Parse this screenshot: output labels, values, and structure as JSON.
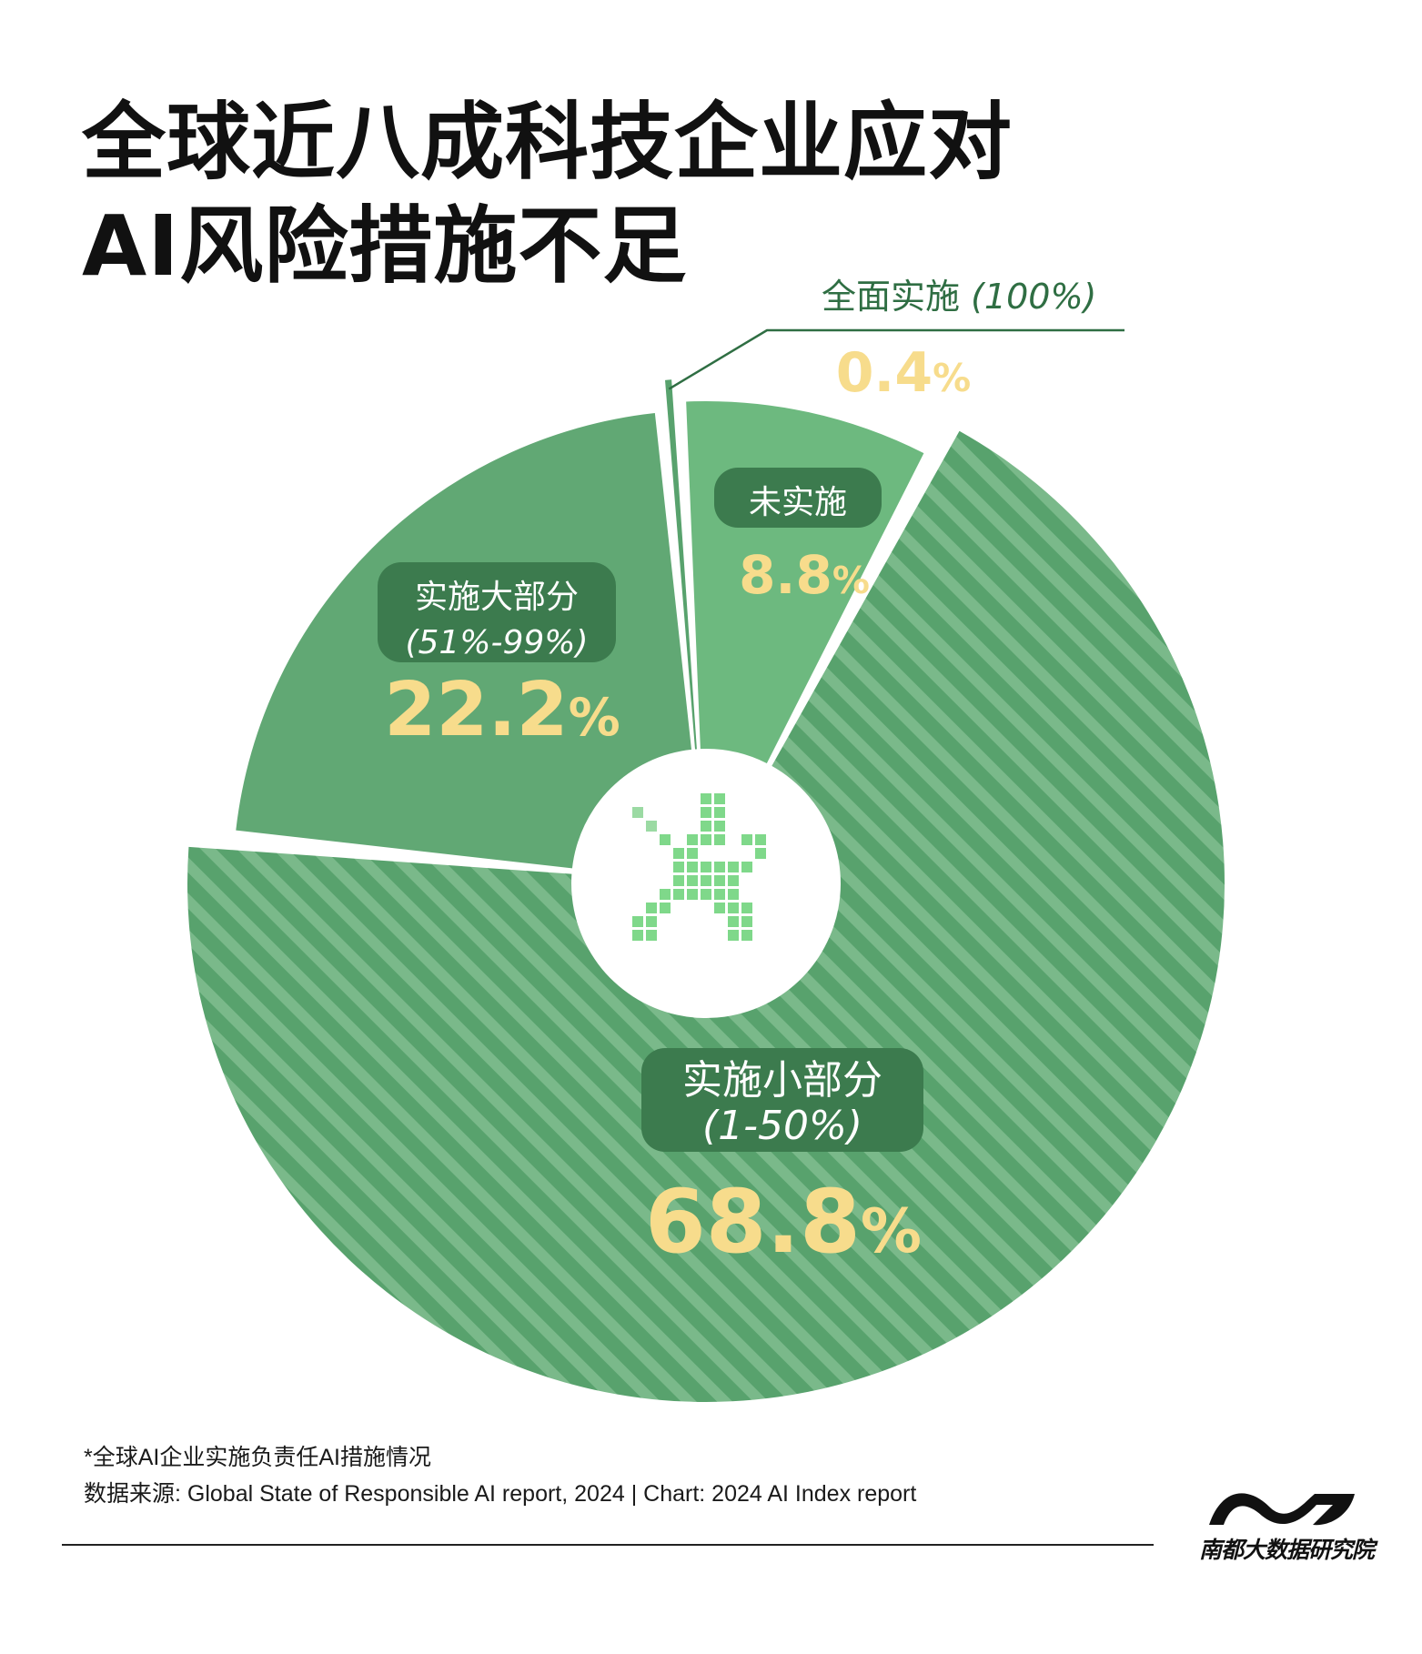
{
  "title": {
    "line1": "全球近八成科技企业应对",
    "line2": "AI风险措施不足"
  },
  "chart_data": {
    "type": "pie",
    "variant": "donut",
    "slices": [
      {
        "key": "full",
        "label": "全面实施",
        "range": "(100%)",
        "value": 0.4,
        "value_text": "0.4",
        "color": "#58a26d",
        "pattern": "solid"
      },
      {
        "key": "none",
        "label": "未实施",
        "range": "",
        "value": 8.8,
        "value_text": "8.8",
        "color": "#6db97f",
        "pattern": "solid"
      },
      {
        "key": "small",
        "label": "实施小部分",
        "range": "(1-50%)",
        "value": 68.8,
        "value_text": "68.8",
        "color": "#58a26d",
        "pattern": "stripes"
      },
      {
        "key": "large",
        "label": "实施大部分",
        "range": "(51%-99%)",
        "value": 22.2,
        "value_text": "22.2",
        "color": "#61a874",
        "pattern": "solid"
      }
    ],
    "percent_sign": "%",
    "label_box_color": "#3c7b4e",
    "value_color": "#f7dc8c",
    "callout_color": "#2f6e43",
    "center_icon": "pixel-star-icon"
  },
  "footnote": {
    "line1": "*全球AI企业实施负责任AI措施情况",
    "line2": "数据来源: Global State of Responsible AI report, 2024 | Chart: 2024 AI Index report"
  },
  "brand": {
    "name": "南都大数据研究院",
    "logo_icon": "wave-logo-icon"
  }
}
